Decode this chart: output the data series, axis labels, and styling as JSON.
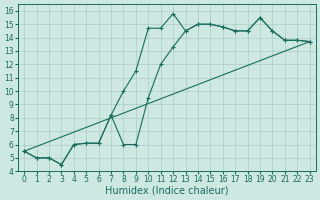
{
  "xlabel": "Humidex (Indice chaleur)",
  "background_color": "#cce8e0",
  "line_color": "#1a6b5a",
  "grid_color": "#aaccc4",
  "xlim": [
    -0.5,
    23.5
  ],
  "ylim": [
    4.0,
    16.5
  ],
  "xticks": [
    0,
    1,
    2,
    3,
    4,
    5,
    6,
    7,
    8,
    9,
    10,
    11,
    12,
    13,
    14,
    15,
    16,
    17,
    18,
    19,
    20,
    21,
    22,
    23
  ],
  "yticks": [
    4,
    5,
    6,
    7,
    8,
    9,
    10,
    11,
    12,
    13,
    14,
    15,
    16
  ],
  "line1_x": [
    0,
    1,
    2,
    3,
    4,
    5,
    6,
    7,
    8,
    9,
    10,
    11,
    12,
    13,
    14,
    15,
    16,
    17,
    18,
    19,
    20,
    21,
    22,
    23
  ],
  "line1_y": [
    5.5,
    5.0,
    5.0,
    4.5,
    6.0,
    6.1,
    6.1,
    8.2,
    10.0,
    11.5,
    14.7,
    14.7,
    15.8,
    14.5,
    15.0,
    15.0,
    14.8,
    14.5,
    14.5,
    15.5,
    14.5,
    13.8,
    13.8,
    13.7
  ],
  "line2_x": [
    0,
    1,
    2,
    3,
    4,
    5,
    6,
    7,
    8,
    9,
    10,
    11,
    12,
    13,
    14,
    15,
    16,
    17,
    18,
    19,
    20,
    21,
    22,
    23
  ],
  "line2_y": [
    5.5,
    5.0,
    5.0,
    4.5,
    6.0,
    6.1,
    6.1,
    8.2,
    6.0,
    6.0,
    9.5,
    12.0,
    13.3,
    14.5,
    15.0,
    15.0,
    14.8,
    14.5,
    14.5,
    15.5,
    14.5,
    13.8,
    13.8,
    13.7
  ],
  "line3_x": [
    0,
    23
  ],
  "line3_y": [
    5.5,
    13.7
  ],
  "fontsize": 7,
  "tick_fontsize": 5.5
}
